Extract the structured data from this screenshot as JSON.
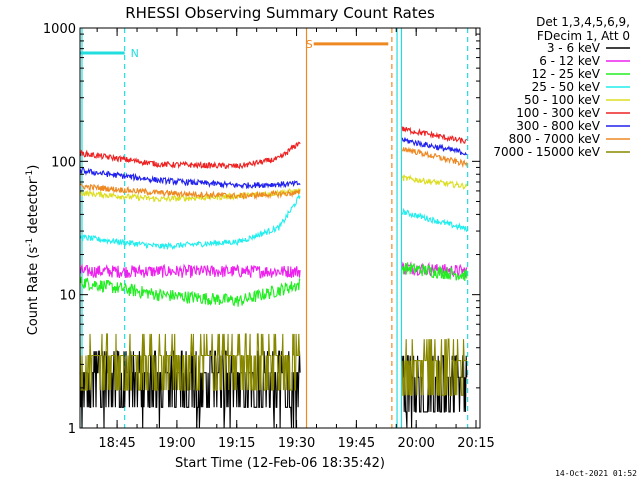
{
  "chart_data": {
    "type": "line",
    "title": "RHESSI Observing Summary Count Rates",
    "xlabel": "Start Time (12-Feb-06 18:35:42)",
    "ylabel_main": "Count Rate (s",
    "ylabel_sup1": "-1",
    "ylabel_mid": " detector",
    "ylabel_sup2": "-1",
    "ylabel_end": ")",
    "timestamp": "14-Oct-2021 01:52",
    "y_scale": "log",
    "ylim": [
      1,
      1000
    ],
    "xlim_minutes": [
      0,
      100.3
    ],
    "x_ticks": [
      {
        "label": "18:45",
        "t": 9.3
      },
      {
        "label": "19:00",
        "t": 24.3
      },
      {
        "label": "19:15",
        "t": 39.3
      },
      {
        "label": "19:30",
        "t": 54.3
      },
      {
        "label": "19:45",
        "t": 69.3
      },
      {
        "label": "20:00",
        "t": 84.3
      },
      {
        "label": "20:15",
        "t": 99.3
      }
    ],
    "y_ticks": [
      {
        "label": "1",
        "v": 1
      },
      {
        "label": "10",
        "v": 10
      },
      {
        "label": "100",
        "v": 100
      },
      {
        "label": "1000",
        "v": 1000
      }
    ],
    "legend": {
      "header1": "Det 1,3,4,5,6,9,",
      "header2": "FDecim 1, Att 0",
      "placement": "right"
    },
    "flags": [
      {
        "label": "N",
        "color": "#22dddd",
        "t0": 0,
        "t1": 11.2,
        "level": 650
      },
      {
        "label": "S",
        "color": "#ee8822",
        "t0": 58.6,
        "t1": 77.3,
        "level": 760
      }
    ],
    "vlines": [
      {
        "t": 0.5,
        "color": "#22dddd",
        "dashed": false
      },
      {
        "t": 11.2,
        "color": "#22dddd",
        "dashed": true
      },
      {
        "t": 56.8,
        "color": "#ee8822",
        "dashed": false
      },
      {
        "t": 78.2,
        "color": "#ee8822",
        "dashed": true
      },
      {
        "t": 79.5,
        "color": "#22dddd",
        "dashed": false
      },
      {
        "t": 80.6,
        "color": "#22dddd",
        "dashed": false
      },
      {
        "t": 97.2,
        "color": "#22dddd",
        "dashed": true
      }
    ],
    "segments": [
      {
        "t0": 0,
        "t1": 55.2
      },
      {
        "t0": 80.8,
        "t1": 97.0
      }
    ],
    "series": [
      {
        "name": "3 - 6 keV",
        "color": "#000000",
        "values": [
          [
            0,
            2.6
          ],
          [
            55.2,
            2.6
          ],
          [
            80.8,
            2.4
          ],
          [
            97.0,
            2.4
          ]
        ]
      },
      {
        "name": "6 - 12 keV",
        "color": "#ee22ee",
        "values": [
          [
            0,
            15
          ],
          [
            55.2,
            15
          ],
          [
            80.8,
            16
          ],
          [
            97.0,
            15
          ]
        ]
      },
      {
        "name": "12 - 25 keV",
        "color": "#22ee22",
        "values": [
          [
            0,
            12.5
          ],
          [
            20,
            10
          ],
          [
            40,
            9
          ],
          [
            55.2,
            12
          ],
          [
            80.8,
            16
          ],
          [
            97.0,
            14
          ]
        ]
      },
      {
        "name": "25 - 50 keV",
        "color": "#22eeee",
        "values": [
          [
            0,
            27
          ],
          [
            20,
            23
          ],
          [
            40,
            25
          ],
          [
            50,
            32
          ],
          [
            55.2,
            55
          ],
          [
            80.8,
            42
          ],
          [
            97.0,
            31
          ]
        ]
      },
      {
        "name": "50 - 100 keV",
        "color": "#dddd22",
        "values": [
          [
            0,
            58
          ],
          [
            20,
            52
          ],
          [
            40,
            55
          ],
          [
            55.2,
            60
          ],
          [
            80.8,
            75
          ],
          [
            97.0,
            65
          ]
        ]
      },
      {
        "name": "100 - 300 keV",
        "color": "#ee2222",
        "values": [
          [
            0,
            115
          ],
          [
            20,
            95
          ],
          [
            40,
            92
          ],
          [
            50,
            105
          ],
          [
            55.2,
            140
          ],
          [
            80.8,
            175
          ],
          [
            97.0,
            140
          ]
        ]
      },
      {
        "name": "300 - 800 keV",
        "color": "#2222ee",
        "values": [
          [
            0,
            85
          ],
          [
            20,
            72
          ],
          [
            40,
            66
          ],
          [
            55.2,
            68
          ],
          [
            80.8,
            145
          ],
          [
            97.0,
            115
          ]
        ]
      },
      {
        "name": "800 - 7000 keV",
        "color": "#ee8822",
        "values": [
          [
            0,
            65
          ],
          [
            20,
            58
          ],
          [
            40,
            55
          ],
          [
            55.2,
            58
          ],
          [
            80.8,
            125
          ],
          [
            97.0,
            95
          ]
        ]
      },
      {
        "name": "7000 - 15000 keV",
        "color": "#888800",
        "values": [
          [
            0,
            3.5
          ],
          [
            55.2,
            3.5
          ],
          [
            80.8,
            3.2
          ],
          [
            97.0,
            3.2
          ]
        ]
      }
    ]
  }
}
